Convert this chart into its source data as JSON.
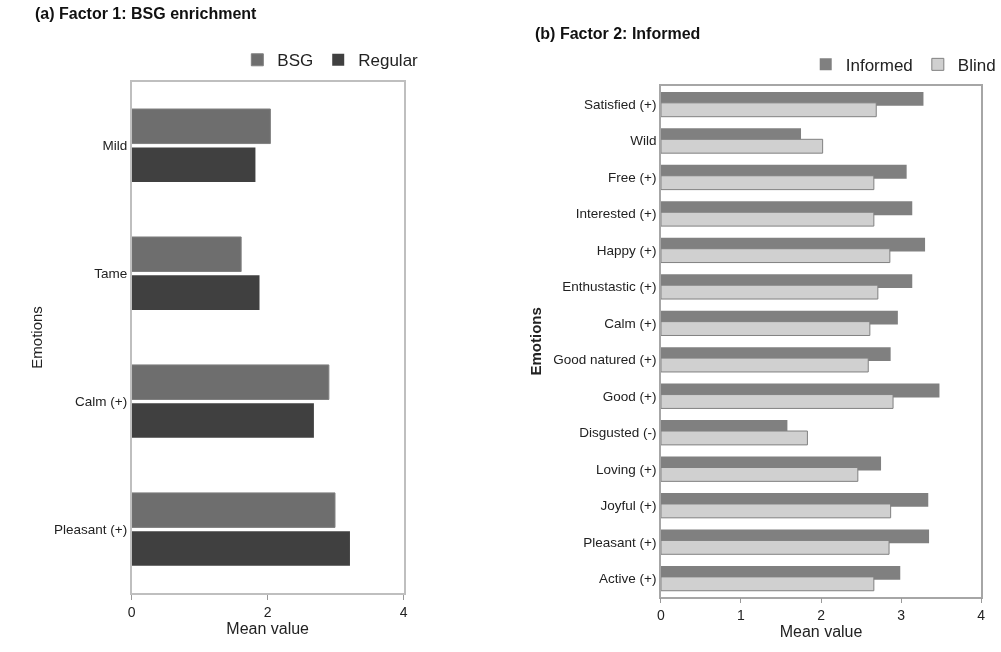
{
  "chart_data": [
    {
      "type": "bar",
      "orientation": "horizontal",
      "title": "(a) Factor 1: BSG enrichment",
      "xlabel": "Mean value",
      "ylabel": "Emotions",
      "categories": [
        "Mild",
        "Tame",
        "Calm (+)",
        "Pleasant (+)"
      ],
      "series": [
        {
          "name": "BSG",
          "color": "#6e6e6e",
          "values": [
            2.04,
            1.61,
            2.9,
            2.99
          ]
        },
        {
          "name": "Regular",
          "color": "#404040",
          "values": [
            1.82,
            1.88,
            2.68,
            3.21
          ]
        }
      ],
      "xlim": [
        0,
        4
      ],
      "xticks": [
        0,
        2,
        4
      ],
      "grid": false,
      "legend": "top right"
    },
    {
      "type": "bar",
      "orientation": "horizontal",
      "title": "(b) Factor 2: Informed",
      "xlabel": "Mean value",
      "ylabel": "Emotions",
      "categories": [
        "Satisfied (+)",
        "Wild",
        "Free (+)",
        "Interested (+)",
        "Happy (+)",
        "Enthustastic (+)",
        "Calm (+)",
        "Good natured (+)",
        "Good (+)",
        "Disgusted (-)",
        "Loving (+)",
        "Joyful (+)",
        "Pleasant (+)",
        "Active (+)"
      ],
      "series": [
        {
          "name": "Informed",
          "color": "#808080",
          "values": [
            3.28,
            1.75,
            3.07,
            3.14,
            3.3,
            3.14,
            2.96,
            2.87,
            3.48,
            1.58,
            2.75,
            3.34,
            3.35,
            2.99
          ]
        },
        {
          "name": "Blind",
          "color": "#d0d0d0",
          "values": [
            2.69,
            2.02,
            2.66,
            2.66,
            2.86,
            2.71,
            2.61,
            2.59,
            2.9,
            1.83,
            2.46,
            2.87,
            2.85,
            2.66
          ]
        }
      ],
      "xlim": [
        0,
        4
      ],
      "xticks": [
        0,
        1,
        2,
        3,
        4
      ],
      "grid": false,
      "legend": "top right"
    }
  ]
}
